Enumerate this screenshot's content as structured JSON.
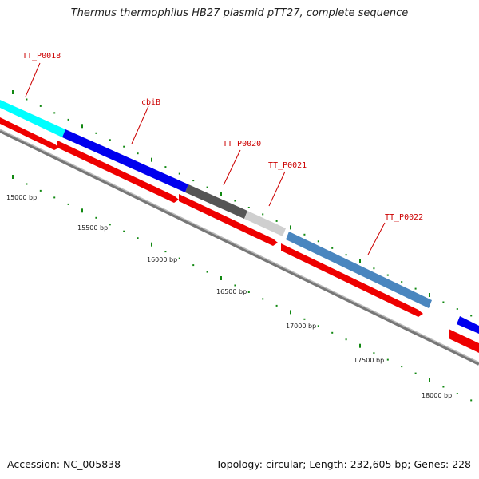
{
  "title": "Thermus thermophilus HB27 plasmid pTT27, complete sequence",
  "footer": {
    "accession": "Accession: NC_005838",
    "topology": "Topology: circular; Length: 232,605 bp; Genes: 228"
  },
  "colors": {
    "cds_track": "#ee0000",
    "backbone": "#888888",
    "tick": "#118811",
    "label": "#cc0000"
  },
  "genes": [
    {
      "name": "TT_P0018",
      "color": "#00ffff"
    },
    {
      "name": "cbiB",
      "color": "#0000ee"
    },
    {
      "name": "TT_P0020",
      "color": "#555555"
    },
    {
      "name": "TT_P0021",
      "color": "#cfcfcf"
    },
    {
      "name": "TT_P0022",
      "color": "#4a86bf"
    }
  ],
  "bp_labels": [
    "15000 bp",
    "15500 bp",
    "16000 bp",
    "16500 bp",
    "17000 bp",
    "17500 bp",
    "18000 bp"
  ]
}
